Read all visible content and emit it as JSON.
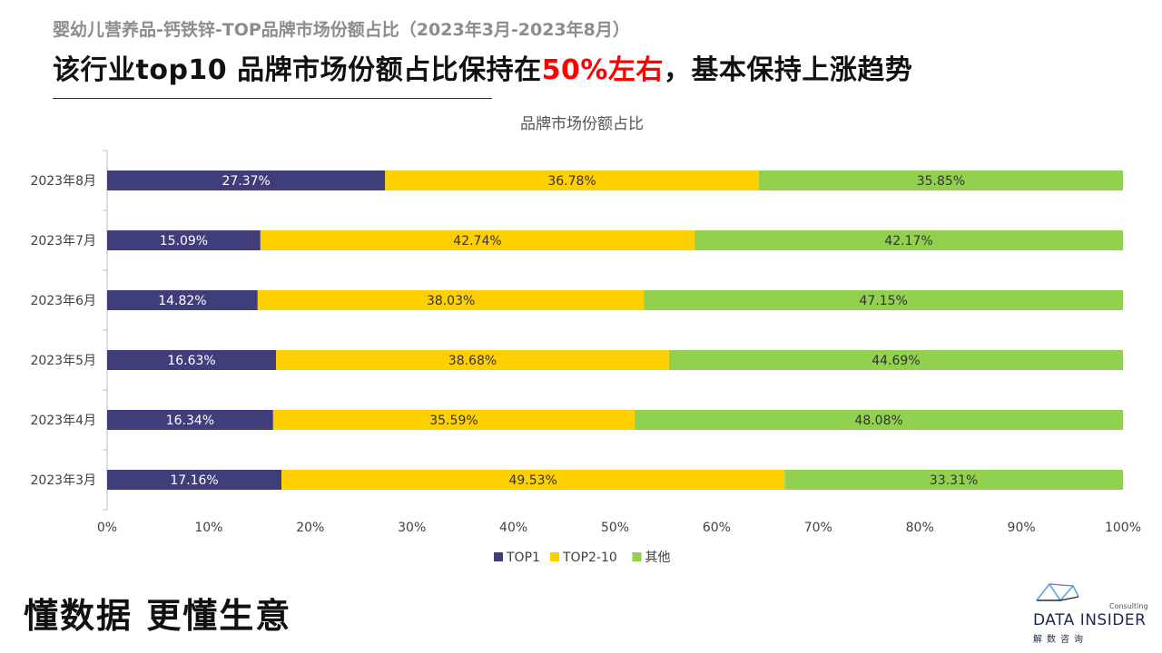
{
  "header": {
    "subtitle": "婴幼儿营养品-钙铁锌-TOP品牌市场份额占比（2023年3月-2023年8月）",
    "headline_part1": "该行业top10 品牌市场份额占比保持在",
    "headline_highlight": "50%左右",
    "headline_part2": "，基本保持上涨趋势"
  },
  "footer": {
    "slogan": "懂数据 更懂生意",
    "logo_brand": "DATA INSIDER",
    "logo_sub": "解数咨询",
    "logo_consulting": "Consulting"
  },
  "chart_data": {
    "type": "bar",
    "orientation": "horizontal",
    "stacked": "percent",
    "title": "品牌市场份额占比",
    "categories": [
      "2023年8月",
      "2023年7月",
      "2023年6月",
      "2023年5月",
      "2023年4月",
      "2023年3月"
    ],
    "series": [
      {
        "name": "TOP1",
        "color": "#3f3d7a",
        "values": [
          27.37,
          15.09,
          14.82,
          16.63,
          16.34,
          17.16
        ],
        "labels": [
          "27.37%",
          "15.09%",
          "14.82%",
          "16.63%",
          "16.34%",
          "17.16%"
        ]
      },
      {
        "name": "TOP2-10",
        "color": "#ffd000",
        "values": [
          36.78,
          42.74,
          38.03,
          38.68,
          35.59,
          49.53
        ],
        "labels": [
          "36.78%",
          "42.74%",
          "38.03%",
          "38.68%",
          "35.59%",
          "49.53%"
        ]
      },
      {
        "name": "其他",
        "color": "#92d050",
        "values": [
          35.85,
          42.17,
          47.15,
          44.69,
          48.08,
          33.31
        ],
        "labels": [
          "35.85%",
          "42.17%",
          "47.15%",
          "44.69%",
          "48.08%",
          "33.31%"
        ]
      }
    ],
    "xlim": [
      0,
      100
    ],
    "xticks": [
      "0%",
      "10%",
      "20%",
      "30%",
      "40%",
      "50%",
      "60%",
      "70%",
      "80%",
      "90%",
      "100%"
    ],
    "legend_position": "bottom",
    "grid": false
  }
}
